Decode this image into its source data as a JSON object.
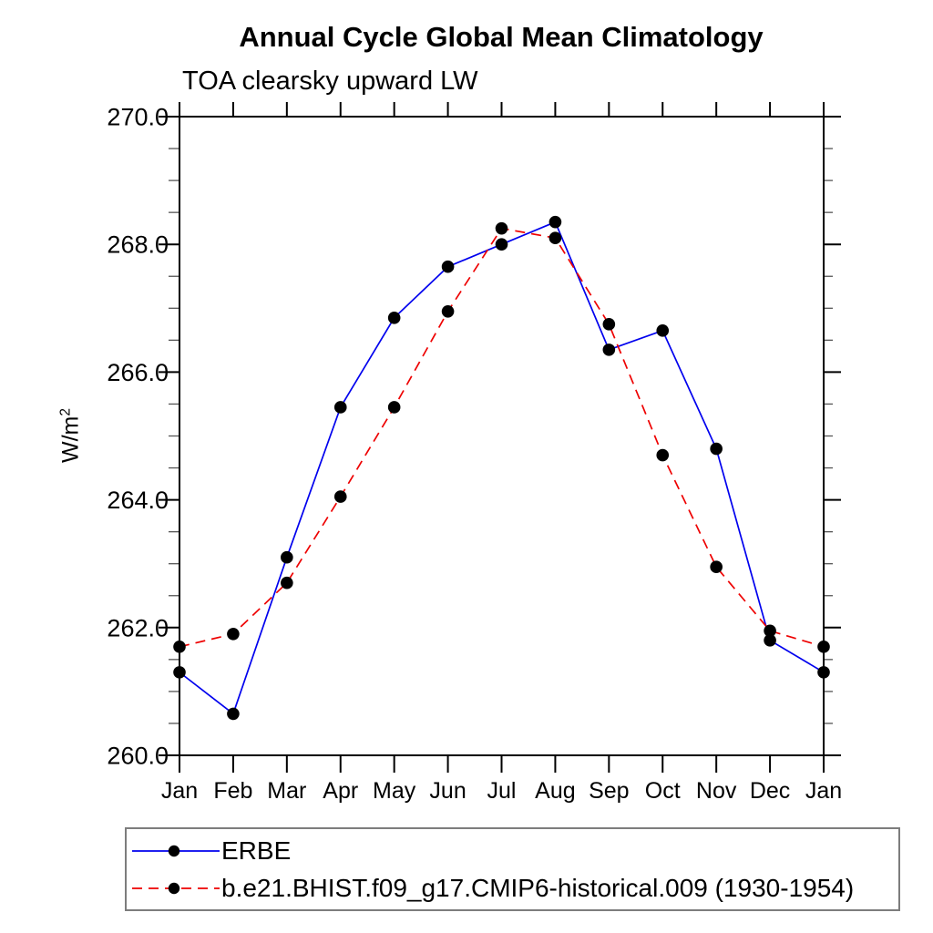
{
  "chart_data": {
    "type": "line",
    "title": "Annual Cycle Global Mean Climatology",
    "subtitle": "TOA clearsky upward LW",
    "ylabel_base": "W/m",
    "ylabel_superscript": "2",
    "categories": [
      "Jan",
      "Feb",
      "Mar",
      "Apr",
      "May",
      "Jun",
      "Jul",
      "Aug",
      "Sep",
      "Oct",
      "Nov",
      "Dec",
      "Jan"
    ],
    "series": [
      {
        "name": "ERBE",
        "color": "#0000ee",
        "line_style": "solid",
        "marker": "circle",
        "marker_color": "#000000",
        "values": [
          261.3,
          260.65,
          263.1,
          265.45,
          266.85,
          267.65,
          268.0,
          268.35,
          266.35,
          266.65,
          264.8,
          261.8,
          261.3
        ]
      },
      {
        "name": "b.e21.BHIST.f09_g17.CMIP6-historical.009 (1930-1954)",
        "color": "#ee0000",
        "line_style": "dashed",
        "marker": "circle",
        "marker_color": "#000000",
        "values": [
          261.7,
          261.9,
          262.7,
          264.05,
          265.45,
          266.95,
          268.25,
          268.1,
          266.75,
          264.7,
          262.95,
          261.95,
          261.7
        ]
      }
    ],
    "ylim": [
      260.0,
      270.0
    ],
    "y_major_step": 2.0,
    "y_minor_step": 0.5,
    "y_tick_labels": [
      "270.0",
      "268.0",
      "266.0",
      "264.0",
      "262.0",
      "260.0"
    ],
    "grid": false,
    "legend_position": "bottom-left",
    "frame_color": "#000000"
  }
}
